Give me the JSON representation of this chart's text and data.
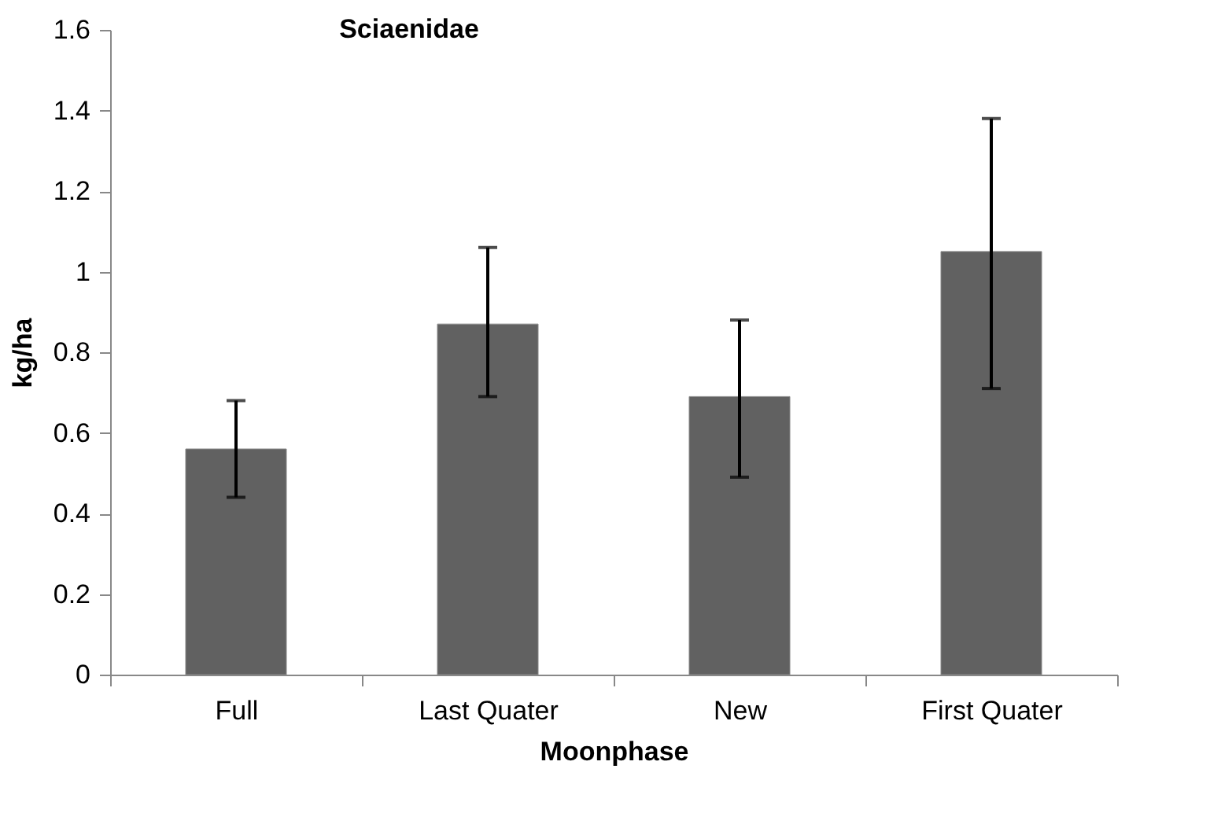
{
  "chart_data": {
    "type": "bar",
    "title": "Sciaenidae",
    "xlabel": "Moonphase",
    "ylabel": "kg/ha",
    "categories": [
      "Full",
      "Last Quater",
      "New",
      "First Quater"
    ],
    "values": [
      0.56,
      0.87,
      0.69,
      1.05
    ],
    "errors": [
      [
        0.44,
        0.68
      ],
      [
        0.69,
        1.06
      ],
      [
        0.49,
        0.88
      ],
      [
        0.71,
        1.38
      ]
    ],
    "color": "#616161",
    "ylim": [
      0,
      1.6
    ],
    "yticks": [
      0,
      0.2,
      0.4,
      0.6,
      0.8,
      1,
      1.2,
      1.4,
      1.6
    ],
    "grid": false
  }
}
